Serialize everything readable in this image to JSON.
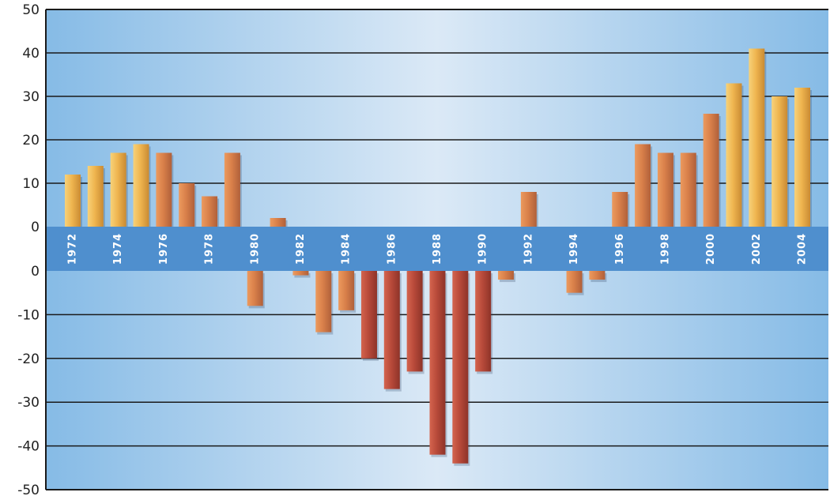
{
  "chart_data": {
    "type": "bar",
    "title": "",
    "xlabel": "",
    "ylabel": "",
    "ylim": [
      -50,
      50
    ],
    "grid": true,
    "y_ticks_top": [
      "50",
      "40",
      "30",
      "20",
      "10",
      "0"
    ],
    "y_ticks_bottom": [
      "0",
      "-10",
      "-20",
      "-30",
      "-40",
      "-50"
    ],
    "categories": [
      "1972",
      "1973",
      "1974",
      "1975",
      "1976",
      "1977",
      "1978",
      "1979",
      "1980",
      "1981",
      "1982",
      "1983",
      "1984",
      "1985",
      "1986",
      "1987",
      "1988",
      "1989",
      "1990",
      "1991",
      "1992",
      "1993",
      "1994",
      "1995",
      "1996",
      "1997",
      "1998",
      "1999",
      "2000",
      "2001",
      "2002",
      "2003",
      "2004"
    ],
    "category_labels": [
      "1972",
      "",
      "1974",
      "",
      "1976",
      "",
      "1978",
      "",
      "1980",
      "",
      "1982",
      "",
      "1984",
      "",
      "1986",
      "",
      "1988",
      "",
      "1990",
      "",
      "1992",
      "",
      "1994",
      "",
      "1996",
      "",
      "1998",
      "",
      "2000",
      "",
      "2002",
      "",
      "2004"
    ],
    "values": [
      12,
      14,
      17,
      19,
      17,
      10,
      7,
      17,
      -8,
      2,
      -1,
      -14,
      -9,
      -20,
      -27,
      -23,
      -42,
      -44,
      -23,
      -2,
      8,
      0,
      -5,
      -2,
      8,
      19,
      17,
      17,
      26,
      33,
      41,
      30,
      32
    ],
    "colors": {
      "positive_light": "#f2bf55",
      "positive_dark": "#d9804a",
      "negative_dark": "#b84a3a",
      "band": "#4f8fce",
      "gradient_edge": "#86bbe6",
      "gradient_center": "#dbe9f6"
    }
  }
}
